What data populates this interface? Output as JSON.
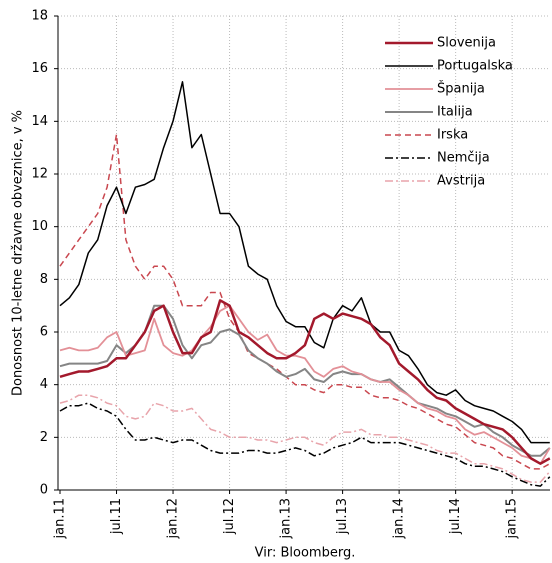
{
  "chart_data": {
    "type": "line",
    "y_label": "Donosnost 10-letne državne obveznice, v %",
    "source": "Vir: Bloomberg.",
    "categories": [
      "jan.11",
      null,
      null,
      null,
      null,
      null,
      "jul.11",
      null,
      null,
      null,
      null,
      null,
      "jan.12",
      null,
      null,
      null,
      null,
      null,
      "jul.12",
      null,
      null,
      null,
      null,
      null,
      "jan.13",
      null,
      null,
      null,
      null,
      null,
      "jul.13",
      null,
      null,
      null,
      null,
      null,
      "jan.14",
      null,
      null,
      null,
      null,
      null,
      "jul.14",
      null,
      null,
      null,
      null,
      null,
      "jan.15",
      null,
      null,
      null,
      null
    ],
    "ylim": [
      0,
      18
    ],
    "yticks": [
      0,
      2,
      4,
      6,
      8,
      10,
      12,
      14,
      16,
      18
    ],
    "grid": true,
    "legend": "upper right",
    "series": [
      {
        "name": "Slovenija",
        "color": "#a3192c",
        "width": 2.5,
        "dash": "none",
        "values": [
          4.3,
          4.4,
          4.5,
          4.5,
          4.6,
          4.7,
          5,
          5,
          5.5,
          6,
          6.8,
          7,
          6,
          5.2,
          5.2,
          5.8,
          6,
          7.2,
          7,
          6,
          5.8,
          5.5,
          5.2,
          5,
          5,
          5.2,
          5.5,
          6.5,
          6.7,
          6.5,
          6.7,
          6.6,
          6.5,
          6.3,
          5.8,
          5.5,
          4.8,
          4.5,
          4.2,
          3.8,
          3.5,
          3.4,
          3.1,
          2.9,
          2.7,
          2.5,
          2.4,
          2.3,
          2.0,
          1.6,
          1.2,
          1.0,
          1.2
        ]
      },
      {
        "name": "Portugalska",
        "color": "#000000",
        "width": 1.5,
        "dash": "none",
        "values": [
          7,
          7.3,
          7.8,
          9,
          9.5,
          10.8,
          11.5,
          10.5,
          11.5,
          11.6,
          11.8,
          13,
          14,
          15.5,
          13,
          13.5,
          12,
          10.5,
          10.5,
          10,
          8.5,
          8.2,
          8,
          7,
          6.4,
          6.2,
          6.2,
          5.6,
          5.4,
          6.5,
          7,
          6.8,
          7.3,
          6.3,
          6,
          6,
          5.3,
          5.1,
          4.6,
          4,
          3.7,
          3.6,
          3.8,
          3.4,
          3.2,
          3.1,
          3,
          2.8,
          2.6,
          2.3,
          1.8,
          1.8,
          1.8
        ]
      },
      {
        "name": "Španija",
        "color": "#e39097",
        "width": 1.8,
        "dash": "none",
        "values": [
          5.3,
          5.4,
          5.3,
          5.3,
          5.4,
          5.8,
          6,
          5.1,
          5.2,
          5.3,
          6.5,
          5.5,
          5.2,
          5.1,
          5.3,
          5.8,
          6.2,
          6.8,
          7,
          6.5,
          6,
          5.7,
          5.9,
          5.3,
          5.1,
          5.1,
          5,
          4.5,
          4.3,
          4.6,
          4.7,
          4.5,
          4.4,
          4.2,
          4.1,
          4.1,
          3.8,
          3.6,
          3.3,
          3.1,
          3,
          2.8,
          2.7,
          2.3,
          2.1,
          2.2,
          2.0,
          1.8,
          1.6,
          1.3,
          1.2,
          1.0,
          1.6
        ]
      },
      {
        "name": "Italija",
        "color": "#858585",
        "width": 2,
        "dash": "none",
        "values": [
          4.7,
          4.8,
          4.8,
          4.8,
          4.8,
          4.9,
          5.5,
          5.2,
          5.5,
          6,
          7,
          7,
          6.5,
          5.5,
          5,
          5.5,
          5.6,
          6,
          6.1,
          5.9,
          5.3,
          5,
          4.8,
          4.5,
          4.3,
          4.4,
          4.6,
          4.2,
          4.1,
          4.4,
          4.5,
          4.4,
          4.4,
          4.2,
          4.1,
          4.2,
          3.9,
          3.6,
          3.3,
          3.2,
          3.1,
          2.9,
          2.8,
          2.6,
          2.4,
          2.5,
          2.2,
          2.0,
          1.7,
          1.5,
          1.3,
          1.3,
          1.6
        ]
      },
      {
        "name": "Irska",
        "color": "#c9474f",
        "width": 1.5,
        "dash": "6,4",
        "values": [
          8.5,
          9,
          9.5,
          10,
          10.5,
          11.5,
          13.5,
          9.5,
          8.5,
          8,
          8.5,
          8.5,
          8,
          7,
          7,
          7,
          7.5,
          7.5,
          6.5,
          6,
          5.2,
          5,
          4.8,
          4.6,
          4.3,
          4,
          4,
          3.8,
          3.7,
          4,
          4,
          3.9,
          3.9,
          3.6,
          3.5,
          3.5,
          3.4,
          3.2,
          3.1,
          2.9,
          2.7,
          2.5,
          2.4,
          2.1,
          1.8,
          1.7,
          1.6,
          1.3,
          1.2,
          1.0,
          0.8,
          0.8,
          1.0
        ]
      },
      {
        "name": "Nemčija",
        "color": "#000000",
        "width": 1.5,
        "dash": "8,3,2,3",
        "values": [
          3.0,
          3.2,
          3.2,
          3.3,
          3.1,
          3.0,
          2.8,
          2.3,
          1.9,
          1.9,
          2.0,
          1.9,
          1.8,
          1.9,
          1.9,
          1.7,
          1.5,
          1.4,
          1.4,
          1.4,
          1.5,
          1.5,
          1.4,
          1.4,
          1.5,
          1.6,
          1.5,
          1.3,
          1.4,
          1.6,
          1.7,
          1.8,
          2.0,
          1.8,
          1.8,
          1.8,
          1.8,
          1.7,
          1.6,
          1.5,
          1.4,
          1.3,
          1.2,
          1.0,
          0.9,
          0.9,
          0.8,
          0.7,
          0.5,
          0.35,
          0.2,
          0.15,
          0.5
        ]
      },
      {
        "name": "Avstrija",
        "color": "#e8a4ab",
        "width": 1.5,
        "dash": "8,3,2,3",
        "values": [
          3.3,
          3.4,
          3.6,
          3.6,
          3.5,
          3.3,
          3.2,
          2.8,
          2.7,
          2.8,
          3.3,
          3.2,
          3.0,
          3.0,
          3.1,
          2.7,
          2.3,
          2.2,
          2.0,
          2.0,
          2.0,
          1.9,
          1.9,
          1.8,
          1.9,
          2.0,
          2.0,
          1.8,
          1.7,
          2.0,
          2.2,
          2.2,
          2.3,
          2.1,
          2.1,
          2.0,
          2.0,
          1.9,
          1.8,
          1.7,
          1.5,
          1.4,
          1.4,
          1.2,
          1.0,
          1.0,
          0.9,
          0.8,
          0.6,
          0.4,
          0.3,
          0.3,
          0.7
        ]
      }
    ]
  }
}
